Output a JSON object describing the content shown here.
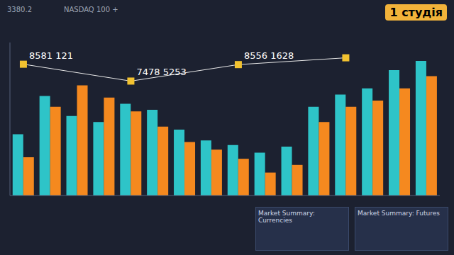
{
  "chart_data": {
    "type": "bar",
    "categories": [
      null,
      null,
      null,
      null,
      null,
      null,
      null,
      null,
      null,
      null,
      null,
      null,
      null,
      null,
      null,
      null
    ],
    "series": [
      {
        "type": "bar",
        "color": "#2ec4c8",
        "values": [
          4000,
          6500,
          5200,
          4800,
          6000,
          5600,
          4300,
          3600,
          3300,
          2800,
          3200,
          5800,
          6600,
          7000,
          8200,
          8800
        ]
      },
      {
        "type": "bar",
        "color": "#f5891f",
        "values": [
          2500,
          5800,
          7200,
          6400,
          5500,
          4500,
          3500,
          3000,
          2400,
          1500,
          2000,
          4800,
          5800,
          6200,
          7000,
          7800
        ]
      },
      {
        "type": "line",
        "color": "#e9e9e9",
        "marker": "square",
        "values": [
          8581.121,
          null,
          null,
          null,
          7478.5253,
          null,
          null,
          null,
          8556.1628,
          null,
          null,
          null,
          9000,
          null,
          null,
          null
        ],
        "value_labels": [
          "8581 121",
          null,
          null,
          null,
          "7478 5253",
          null,
          null,
          null,
          "8556 1628",
          null,
          null,
          null,
          null,
          null,
          null,
          null
        ]
      }
    ],
    "ylim": [
      0,
      10000
    ],
    "yticks": [
      0,
      10000
    ],
    "grid": false,
    "tick_labels": false,
    "annotations": [
      "1 студія",
      "3380.2",
      "NASDAQ 100 +",
      "Market Summary: Currencies",
      "Market Summary: Futures"
    ]
  }
}
